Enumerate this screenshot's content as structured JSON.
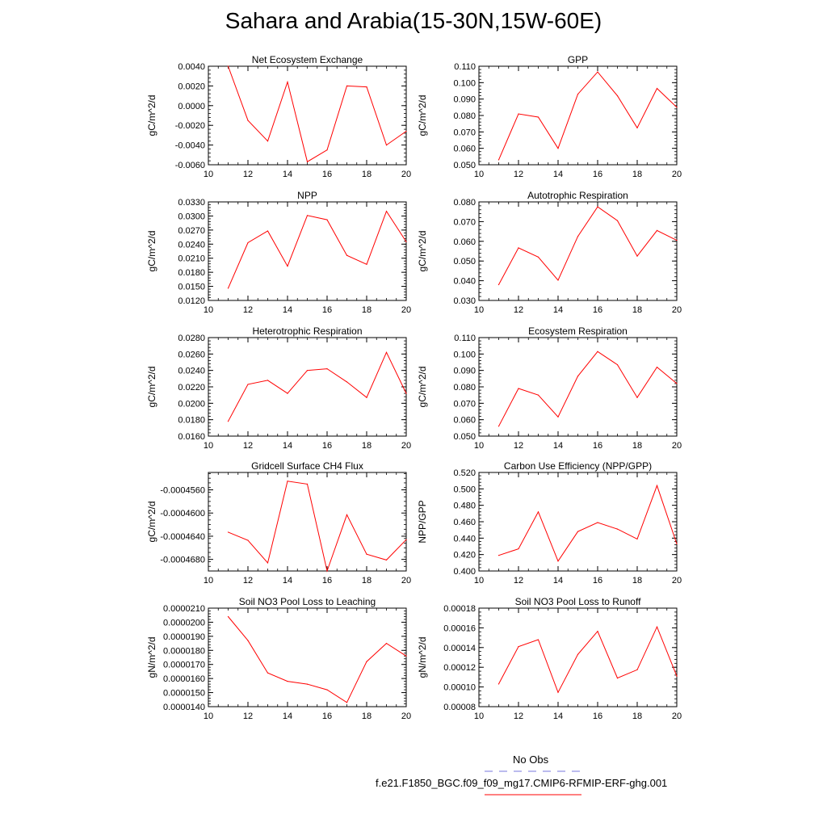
{
  "figure": {
    "title": "Sahara and Arabia(15-30N,15W-60E)",
    "legend_obs_label": "No Obs",
    "legend_case_label": "f.e21.F1850_BGC.f09_f09_mg17.CMIP6-RFMIP-ERF-ghg.001",
    "obs_line_color": "#7777dd",
    "case_line_color": "#ff0000"
  },
  "chart_data": [
    {
      "type": "line",
      "title": "Net Ecosystem Exchange",
      "ylabel": "gC/m^2/d",
      "xlim": [
        10,
        20
      ],
      "xticks": [
        "10",
        "12",
        "14",
        "16",
        "18",
        "20"
      ],
      "ylim": [
        -0.006,
        0.004
      ],
      "yticks": [
        "-0.0060",
        "-0.0040",
        "-0.0020",
        "0.0000",
        "0.0020",
        "0.0040"
      ],
      "x": [
        11,
        12,
        13,
        14,
        15,
        16,
        17,
        18,
        19,
        20
      ],
      "values": [
        0.004,
        -0.0015,
        -0.0036,
        0.0024,
        -0.0057,
        -0.0045,
        0.002,
        0.0019,
        -0.004,
        -0.0026
      ]
    },
    {
      "type": "line",
      "title": "GPP",
      "ylabel": "gC/m^2/d",
      "xlim": [
        10,
        20
      ],
      "xticks": [
        "10",
        "12",
        "14",
        "16",
        "18",
        "20"
      ],
      "ylim": [
        0.05,
        0.11
      ],
      "yticks": [
        "0.050",
        "0.060",
        "0.070",
        "0.080",
        "0.090",
        "0.100",
        "0.110"
      ],
      "x": [
        11,
        12,
        13,
        14,
        15,
        16,
        17,
        18,
        19,
        20
      ],
      "values": [
        0.053,
        0.081,
        0.079,
        0.06,
        0.093,
        0.1065,
        0.092,
        0.0725,
        0.0965,
        0.085
      ]
    },
    {
      "type": "line",
      "title": "NPP",
      "ylabel": "gC/m^2/d",
      "xlim": [
        10,
        20
      ],
      "xticks": [
        "10",
        "12",
        "14",
        "16",
        "18",
        "20"
      ],
      "ylim": [
        0.012,
        0.033
      ],
      "yticks": [
        "0.0120",
        "0.0150",
        "0.0180",
        "0.0210",
        "0.0240",
        "0.0270",
        "0.0300",
        "0.0330"
      ],
      "x": [
        11,
        12,
        13,
        14,
        15,
        16,
        17,
        18,
        19,
        20
      ],
      "values": [
        0.0146,
        0.0243,
        0.0268,
        0.0193,
        0.0301,
        0.0292,
        0.0216,
        0.0197,
        0.031,
        0.0245
      ]
    },
    {
      "type": "line",
      "title": "Autotrophic Respiration",
      "ylabel": "gC/m^2/d",
      "xlim": [
        10,
        20
      ],
      "xticks": [
        "10",
        "12",
        "14",
        "16",
        "18",
        "20"
      ],
      "ylim": [
        0.03,
        0.08
      ],
      "yticks": [
        "0.030",
        "0.040",
        "0.050",
        "0.060",
        "0.070",
        "0.080"
      ],
      "x": [
        11,
        12,
        13,
        14,
        15,
        16,
        17,
        18,
        19,
        20
      ],
      "values": [
        0.038,
        0.0567,
        0.052,
        0.0403,
        0.0625,
        0.0775,
        0.0705,
        0.0525,
        0.0655,
        0.0605
      ]
    },
    {
      "type": "line",
      "title": "Heterotrophic Respiration",
      "ylabel": "gC/m^2/d",
      "xlim": [
        10,
        20
      ],
      "xticks": [
        "10",
        "12",
        "14",
        "16",
        "18",
        "20"
      ],
      "ylim": [
        0.016,
        0.028
      ],
      "yticks": [
        "0.0160",
        "0.0180",
        "0.0200",
        "0.0220",
        "0.0240",
        "0.0260",
        "0.0280"
      ],
      "x": [
        11,
        12,
        13,
        14,
        15,
        16,
        17,
        18,
        19,
        20
      ],
      "values": [
        0.0178,
        0.0223,
        0.0228,
        0.0212,
        0.024,
        0.0242,
        0.0226,
        0.0207,
        0.0262,
        0.0212
      ]
    },
    {
      "type": "line",
      "title": "Ecosystem Respiration",
      "ylabel": "gC/m^2/d",
      "xlim": [
        10,
        20
      ],
      "xticks": [
        "10",
        "12",
        "14",
        "16",
        "18",
        "20"
      ],
      "ylim": [
        0.05,
        0.11
      ],
      "yticks": [
        "0.050",
        "0.060",
        "0.070",
        "0.080",
        "0.090",
        "0.100",
        "0.110"
      ],
      "x": [
        11,
        12,
        13,
        14,
        15,
        16,
        17,
        18,
        19,
        20
      ],
      "values": [
        0.056,
        0.079,
        0.075,
        0.0617,
        0.0865,
        0.1015,
        0.0935,
        0.0735,
        0.092,
        0.082
      ]
    },
    {
      "type": "line",
      "title": "Gridcell Surface CH4 Flux",
      "ylabel": "gC/m^2/d",
      "xlim": [
        10,
        20
      ],
      "xticks": [
        "10",
        "12",
        "14",
        "16",
        "18",
        "20"
      ],
      "ylim": [
        -0.00047,
        -0.000453
      ],
      "yticks": [
        "-0.0004680",
        "-0.0004640",
        "-0.0004600",
        "-0.0004560"
      ],
      "ytick_values": [
        -0.000468,
        -0.000464,
        -0.00046,
        -0.000456
      ],
      "x": [
        11,
        12,
        13,
        14,
        15,
        16,
        17,
        18,
        19,
        20
      ],
      "values": [
        -0.0004633,
        -0.0004647,
        -0.0004686,
        -0.0004545,
        -0.000455,
        -0.00047,
        -0.0004603,
        -0.0004671,
        -0.0004681,
        -0.0004646
      ]
    },
    {
      "type": "line",
      "title": "Carbon Use Efficiency (NPP/GPP)",
      "ylabel": "NPP/GPP",
      "xlim": [
        10,
        20
      ],
      "xticks": [
        "10",
        "12",
        "14",
        "16",
        "18",
        "20"
      ],
      "ylim": [
        0.4,
        0.52
      ],
      "yticks": [
        "0.400",
        "0.420",
        "0.440",
        "0.460",
        "0.480",
        "0.500",
        "0.520"
      ],
      "x": [
        11,
        12,
        13,
        14,
        15,
        16,
        17,
        18,
        19,
        20
      ],
      "values": [
        0.419,
        0.427,
        0.472,
        0.412,
        0.448,
        0.459,
        0.451,
        0.439,
        0.504,
        0.433
      ]
    },
    {
      "type": "line",
      "title": "Soil NO3 Pool Loss to Leaching",
      "ylabel": "gN/m^2/d",
      "xlim": [
        10,
        20
      ],
      "xticks": [
        "10",
        "12",
        "14",
        "16",
        "18",
        "20"
      ],
      "ylim": [
        1.4e-05,
        2.1e-05
      ],
      "yticks": [
        "0.0000140",
        "0.0000150",
        "0.0000160",
        "0.0000170",
        "0.0000180",
        "0.0000190",
        "0.0000200",
        "0.0000210"
      ],
      "x": [
        11,
        12,
        13,
        14,
        15,
        16,
        17,
        18,
        19,
        20
      ],
      "values": [
        2.04e-05,
        1.87e-05,
        1.64e-05,
        1.58e-05,
        1.56e-05,
        1.52e-05,
        1.43e-05,
        1.72e-05,
        1.85e-05,
        1.76e-05
      ]
    },
    {
      "type": "line",
      "title": "Soil NO3 Pool Loss to Runoff",
      "ylabel": "gN/m^2/d",
      "xlim": [
        10,
        20
      ],
      "xticks": [
        "10",
        "12",
        "14",
        "16",
        "18",
        "20"
      ],
      "ylim": [
        8e-05,
        0.00018
      ],
      "yticks": [
        "0.00008",
        "0.00010",
        "0.00012",
        "0.00014",
        "0.00016",
        "0.00018"
      ],
      "x": [
        11,
        12,
        13,
        14,
        15,
        16,
        17,
        18,
        19,
        20
      ],
      "values": [
        0.000103,
        0.000141,
        0.000148,
        9.45e-05,
        0.000133,
        0.0001565,
        0.000109,
        0.0001175,
        0.000161,
        0.000111
      ]
    }
  ]
}
